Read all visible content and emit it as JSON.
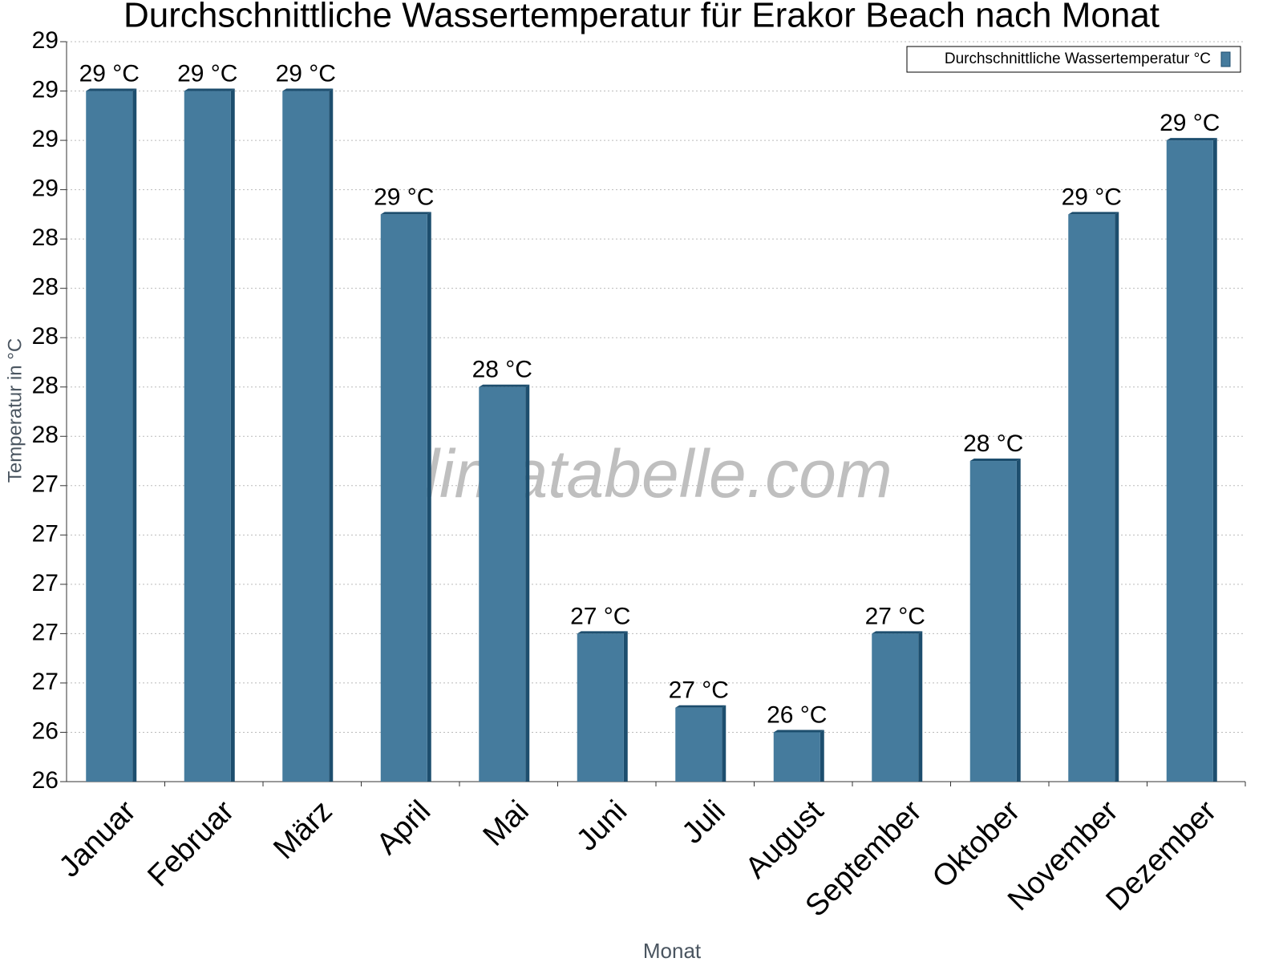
{
  "chart_data": {
    "type": "bar",
    "title": "Durchschnittliche Wassertemperatur für Erakor Beach nach Monat",
    "x_label": "Monat",
    "y_label": "Temperatur in °C",
    "watermark": "klimatabelle.com",
    "categories": [
      "Januar",
      "Februar",
      "März",
      "April",
      "Mai",
      "Juni",
      "Juli",
      "August",
      "September",
      "Oktober",
      "November",
      "Dezember"
    ],
    "series": [
      {
        "name": "Durchschnittliche Wassertemperatur °C",
        "color": "#457b9d",
        "values": [
          29.05,
          29.05,
          29.05,
          28.55,
          27.85,
          26.85,
          26.55,
          26.45,
          26.85,
          27.55,
          28.55,
          28.85
        ],
        "value_labels": [
          "29 °C",
          "29 °C",
          "29 °C",
          "29 °C",
          "28 °C",
          "27 °C",
          "27 °C",
          "26 °C",
          "27 °C",
          "28 °C",
          "29 °C",
          "29 °C"
        ]
      }
    ],
    "ylim": [
      26.25,
      29.25
    ],
    "yticks": [
      {
        "value": 26.25,
        "label": "26"
      },
      {
        "value": 26.45,
        "label": "26"
      },
      {
        "value": 26.65,
        "label": "27"
      },
      {
        "value": 26.85,
        "label": "27"
      },
      {
        "value": 27.05,
        "label": "27"
      },
      {
        "value": 27.25,
        "label": "27"
      },
      {
        "value": 27.45,
        "label": "27"
      },
      {
        "value": 27.65,
        "label": "28"
      },
      {
        "value": 27.85,
        "label": "28"
      },
      {
        "value": 28.05,
        "label": "28"
      },
      {
        "value": 28.25,
        "label": "28"
      },
      {
        "value": 28.45,
        "label": "28"
      },
      {
        "value": 28.65,
        "label": "29"
      },
      {
        "value": 28.85,
        "label": "29"
      },
      {
        "value": 29.05,
        "label": "29"
      },
      {
        "value": 29.25,
        "label": "29"
      }
    ],
    "grid": true,
    "legend": "top-right"
  }
}
